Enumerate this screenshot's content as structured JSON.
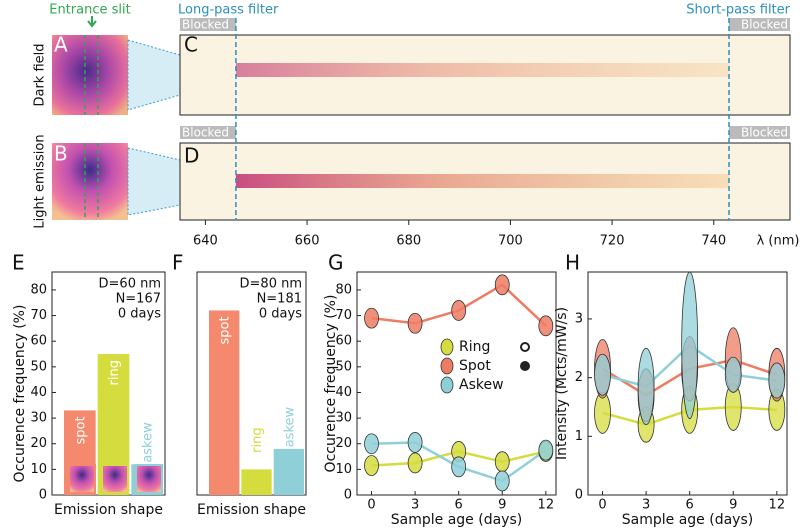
{
  "panel_labels": [
    "A",
    "B",
    "C",
    "D",
    "E",
    "F",
    "G",
    "H"
  ],
  "entrance_slit": "Entrance slit",
  "chart_data": [
    {
      "type": "spectrum",
      "xlim": [
        635,
        755
      ],
      "xticks": [
        640,
        660,
        680,
        700,
        720,
        740
      ],
      "xlabel": "λ (nm)",
      "rows": [
        "Dark field",
        "Light emission"
      ],
      "blocked_label": "Blocked",
      "filters": [
        {
          "name": "Long-pass filter",
          "value": 646
        },
        {
          "name": "Short-pass filter",
          "value": 743
        }
      ]
    },
    {
      "type": "bar",
      "categories": [
        "spot",
        "ring",
        "askew"
      ],
      "values": [
        33,
        55,
        12
      ],
      "colors": [
        "#f4896e",
        "#d5dc3e",
        "#8fd0d8"
      ],
      "ylim": [
        0,
        87
      ],
      "yticks": [
        0,
        10,
        20,
        30,
        40,
        50,
        60,
        70,
        80
      ],
      "ylabel": "Occurence frequency (%)",
      "xlabel": "Emission shape",
      "annotations": [
        "D=60 nm",
        "N=167",
        "0 days"
      ]
    },
    {
      "type": "bar",
      "categories": [
        "spot",
        "ring",
        "askew"
      ],
      "values": [
        72,
        10,
        18
      ],
      "colors": [
        "#f4896e",
        "#d5dc3e",
        "#8fd0d8"
      ],
      "ylim": [
        0,
        87
      ],
      "xlabel": "Emission shape",
      "annotations": [
        "D=80 nm",
        "N=181",
        "0 days"
      ]
    },
    {
      "type": "line",
      "x": [
        0,
        3,
        6,
        9,
        12
      ],
      "xlim": [
        -1,
        12.7
      ],
      "xticks": [
        0,
        3,
        6,
        9,
        12
      ],
      "ylim": [
        0,
        87
      ],
      "yticks": [
        0,
        10,
        20,
        30,
        40,
        50,
        60,
        70,
        80
      ],
      "ylabel": "Occurence frequency (%)",
      "xlabel": "Sample age (days)",
      "series": [
        {
          "name": "Ring",
          "color": "#d5dc3e",
          "values": [
            11.5,
            12.5,
            17,
            13,
            17
          ]
        },
        {
          "name": "Spot",
          "color": "#ee7c63",
          "values": [
            69,
            67,
            72,
            82,
            66
          ]
        },
        {
          "name": "Askew",
          "color": "#8fd0d8",
          "values": [
            20,
            20.5,
            11,
            5.5,
            17.5
          ]
        }
      ]
    },
    {
      "type": "line",
      "x": [
        0,
        3,
        6,
        9,
        12
      ],
      "xlim": [
        -1,
        12.7
      ],
      "xticks": [
        0,
        3,
        6,
        9,
        12
      ],
      "ylim": [
        0,
        3.8
      ],
      "yticks": [
        0,
        1,
        2,
        3
      ],
      "ylabel": "Intensity (Mcts/mW/s)",
      "xlabel": "Sample age (days)",
      "series": [
        {
          "name": "Ring",
          "color": "#d5dc3e",
          "values": [
            1.4,
            1.2,
            1.45,
            1.5,
            1.45
          ],
          "errors": [
            0.35,
            0.3,
            0.4,
            0.4,
            0.35
          ]
        },
        {
          "name": "Spot",
          "color": "#ee7c63",
          "values": [
            2.15,
            1.7,
            2.15,
            2.3,
            2.05
          ],
          "errors": [
            0.5,
            0.45,
            0.55,
            0.55,
            0.45
          ]
        },
        {
          "name": "Askew",
          "color": "#8fd0d8",
          "values": [
            2.05,
            1.85,
            2.55,
            2.05,
            1.95
          ],
          "errors": [
            0.35,
            0.65,
            1.25,
            0.3,
            0.3
          ]
        }
      ]
    }
  ]
}
